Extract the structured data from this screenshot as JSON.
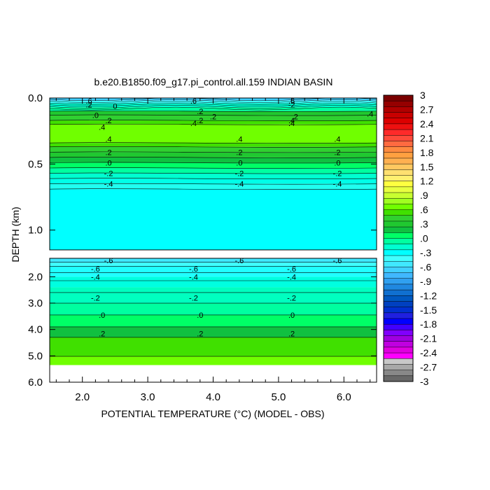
{
  "chart_data": {
    "type": "heatmap",
    "title": "b.e20.B1850.f09_g17.pi_control.all.159 INDIAN BASIN",
    "xlabel": "POTENTIAL TEMPERATURE (°C) (MODEL - OBS)",
    "ylabel": "DEPTH (km)",
    "xlim": [
      1.5,
      6.5
    ],
    "x_ticks": [
      "2.0",
      "3.0",
      "4.0",
      "5.0",
      "6.0"
    ],
    "top_panel": {
      "ylim": [
        0.0,
        1.15
      ],
      "y_ticks": [
        "0.0",
        "0.5",
        "1.0"
      ]
    },
    "bottom_panel": {
      "ylim": [
        1.3,
        6.0
      ],
      "y_ticks": [
        "2.0",
        "3.0",
        "4.0",
        "5.0",
        "6.0"
      ]
    },
    "colorbar": {
      "labels": [
        "3",
        "2.7",
        "2.4",
        "2.1",
        "1.8",
        "1.5",
        "1.2",
        ".9",
        ".6",
        ".3",
        ".0",
        "-.3",
        "-.6",
        "-.9",
        "-1.2",
        "-1.5",
        "-1.8",
        "-2.1",
        "-2.4",
        "-2.7",
        "-3"
      ],
      "colors": [
        "#7a0000",
        "#950000",
        "#b00000",
        "#c80000",
        "#dc0000",
        "#ee1010",
        "#ff2a2a",
        "#ff4a3a",
        "#ff6a40",
        "#ff8a40",
        "#ffa040",
        "#ffb050",
        "#ffc860",
        "#ffe070",
        "#fff070",
        "#ffff40",
        "#e8ff40",
        "#c8ff30",
        "#a0ff20",
        "#70ff00",
        "#40e000",
        "#30d030",
        "#20c830",
        "#10c040",
        "#00ff66",
        "#00ffa0",
        "#00ffd0",
        "#00ffff",
        "#40ffff",
        "#40e8ff",
        "#40d0ff",
        "#40b8ff",
        "#30a0f0",
        "#2088e0",
        "#1070d0",
        "#0058c0",
        "#0040c0",
        "#0030d0",
        "#2020e0",
        "#0000ff",
        "#4000ff",
        "#8000ff",
        "#a000e0",
        "#c000e0",
        "#e000e0",
        "#ff00ff",
        "#c8c8c8",
        "#a8a8a8",
        "#888888",
        "#686868"
      ]
    },
    "contour_labels": [
      {
        "text": ".6",
        "x": 2.1,
        "depth": 0.02
      },
      {
        "text": ".6",
        "x": 3.7,
        "depth": 0.02
      },
      {
        "text": ".6",
        "x": 5.2,
        "depth": 0.02
      },
      {
        "text": ".2",
        "x": 2.1,
        "depth": 0.05
      },
      {
        "text": "-2",
        "x": 5.2,
        "depth": 0.05
      },
      {
        "text": "0",
        "x": 2.5,
        "depth": 0.06
      },
      {
        "text": ".2",
        "x": 3.8,
        "depth": 0.1
      },
      {
        "text": ".2",
        "x": 4.0,
        "depth": 0.14
      },
      {
        "text": ".0",
        "x": 2.2,
        "depth": 0.13
      },
      {
        "text": ".2",
        "x": 2.4,
        "depth": 0.17
      },
      {
        "text": ".2",
        "x": 3.8,
        "depth": 0.17
      },
      {
        "text": ".4",
        "x": 5.2,
        "depth": 0.17
      },
      {
        "text": ".2",
        "x": 5.25,
        "depth": 0.14
      },
      {
        "text": ".4",
        "x": 6.4,
        "depth": 0.12
      },
      {
        "text": ".4",
        "x": 2.3,
        "depth": 0.22
      },
      {
        "text": ".4",
        "x": 3.7,
        "depth": 0.19
      },
      {
        "text": ".4",
        "x": 5.2,
        "depth": 0.19
      },
      {
        "text": ".4",
        "x": 2.4,
        "depth": 0.31
      },
      {
        "text": ".4",
        "x": 4.4,
        "depth": 0.31
      },
      {
        "text": ".4",
        "x": 5.9,
        "depth": 0.31
      },
      {
        "text": ".2",
        "x": 2.4,
        "depth": 0.41
      },
      {
        "text": ".2",
        "x": 4.4,
        "depth": 0.41
      },
      {
        "text": ".2",
        "x": 5.9,
        "depth": 0.41
      },
      {
        "text": ".0",
        "x": 2.4,
        "depth": 0.49
      },
      {
        "text": ".0",
        "x": 4.4,
        "depth": 0.49
      },
      {
        "text": ".0",
        "x": 5.9,
        "depth": 0.49
      },
      {
        "text": "-.2",
        "x": 2.4,
        "depth": 0.57
      },
      {
        "text": "-.2",
        "x": 4.4,
        "depth": 0.57
      },
      {
        "text": "-.2",
        "x": 5.9,
        "depth": 0.57
      },
      {
        "text": "-.4",
        "x": 2.4,
        "depth": 0.65
      },
      {
        "text": "-.4",
        "x": 4.4,
        "depth": 0.65
      },
      {
        "text": "-.4",
        "x": 5.9,
        "depth": 0.65
      },
      {
        "text": "-.6",
        "x": 2.4,
        "depth": 1.38
      },
      {
        "text": "-.6",
        "x": 4.4,
        "depth": 1.38
      },
      {
        "text": "-.6",
        "x": 5.9,
        "depth": 1.38
      },
      {
        "text": "-.6",
        "x": 2.2,
        "depth": 1.7
      },
      {
        "text": "-.6",
        "x": 3.7,
        "depth": 1.7
      },
      {
        "text": "-.6",
        "x": 5.2,
        "depth": 1.7
      },
      {
        "text": "-.4",
        "x": 2.2,
        "depth": 2.0
      },
      {
        "text": "-.4",
        "x": 3.7,
        "depth": 2.0
      },
      {
        "text": "-.4",
        "x": 5.2,
        "depth": 2.0
      },
      {
        "text": "-.2",
        "x": 2.2,
        "depth": 2.8
      },
      {
        "text": "-.2",
        "x": 3.7,
        "depth": 2.8
      },
      {
        "text": "-.2",
        "x": 5.2,
        "depth": 2.8
      },
      {
        "text": ".0",
        "x": 2.3,
        "depth": 3.45
      },
      {
        "text": ".0",
        "x": 3.8,
        "depth": 3.45
      },
      {
        "text": ".0",
        "x": 5.2,
        "depth": 3.45
      },
      {
        "text": ".2",
        "x": 2.3,
        "depth": 4.15
      },
      {
        "text": ".2",
        "x": 3.8,
        "depth": 4.15
      },
      {
        "text": ".2",
        "x": 5.2,
        "depth": 4.15
      }
    ]
  }
}
